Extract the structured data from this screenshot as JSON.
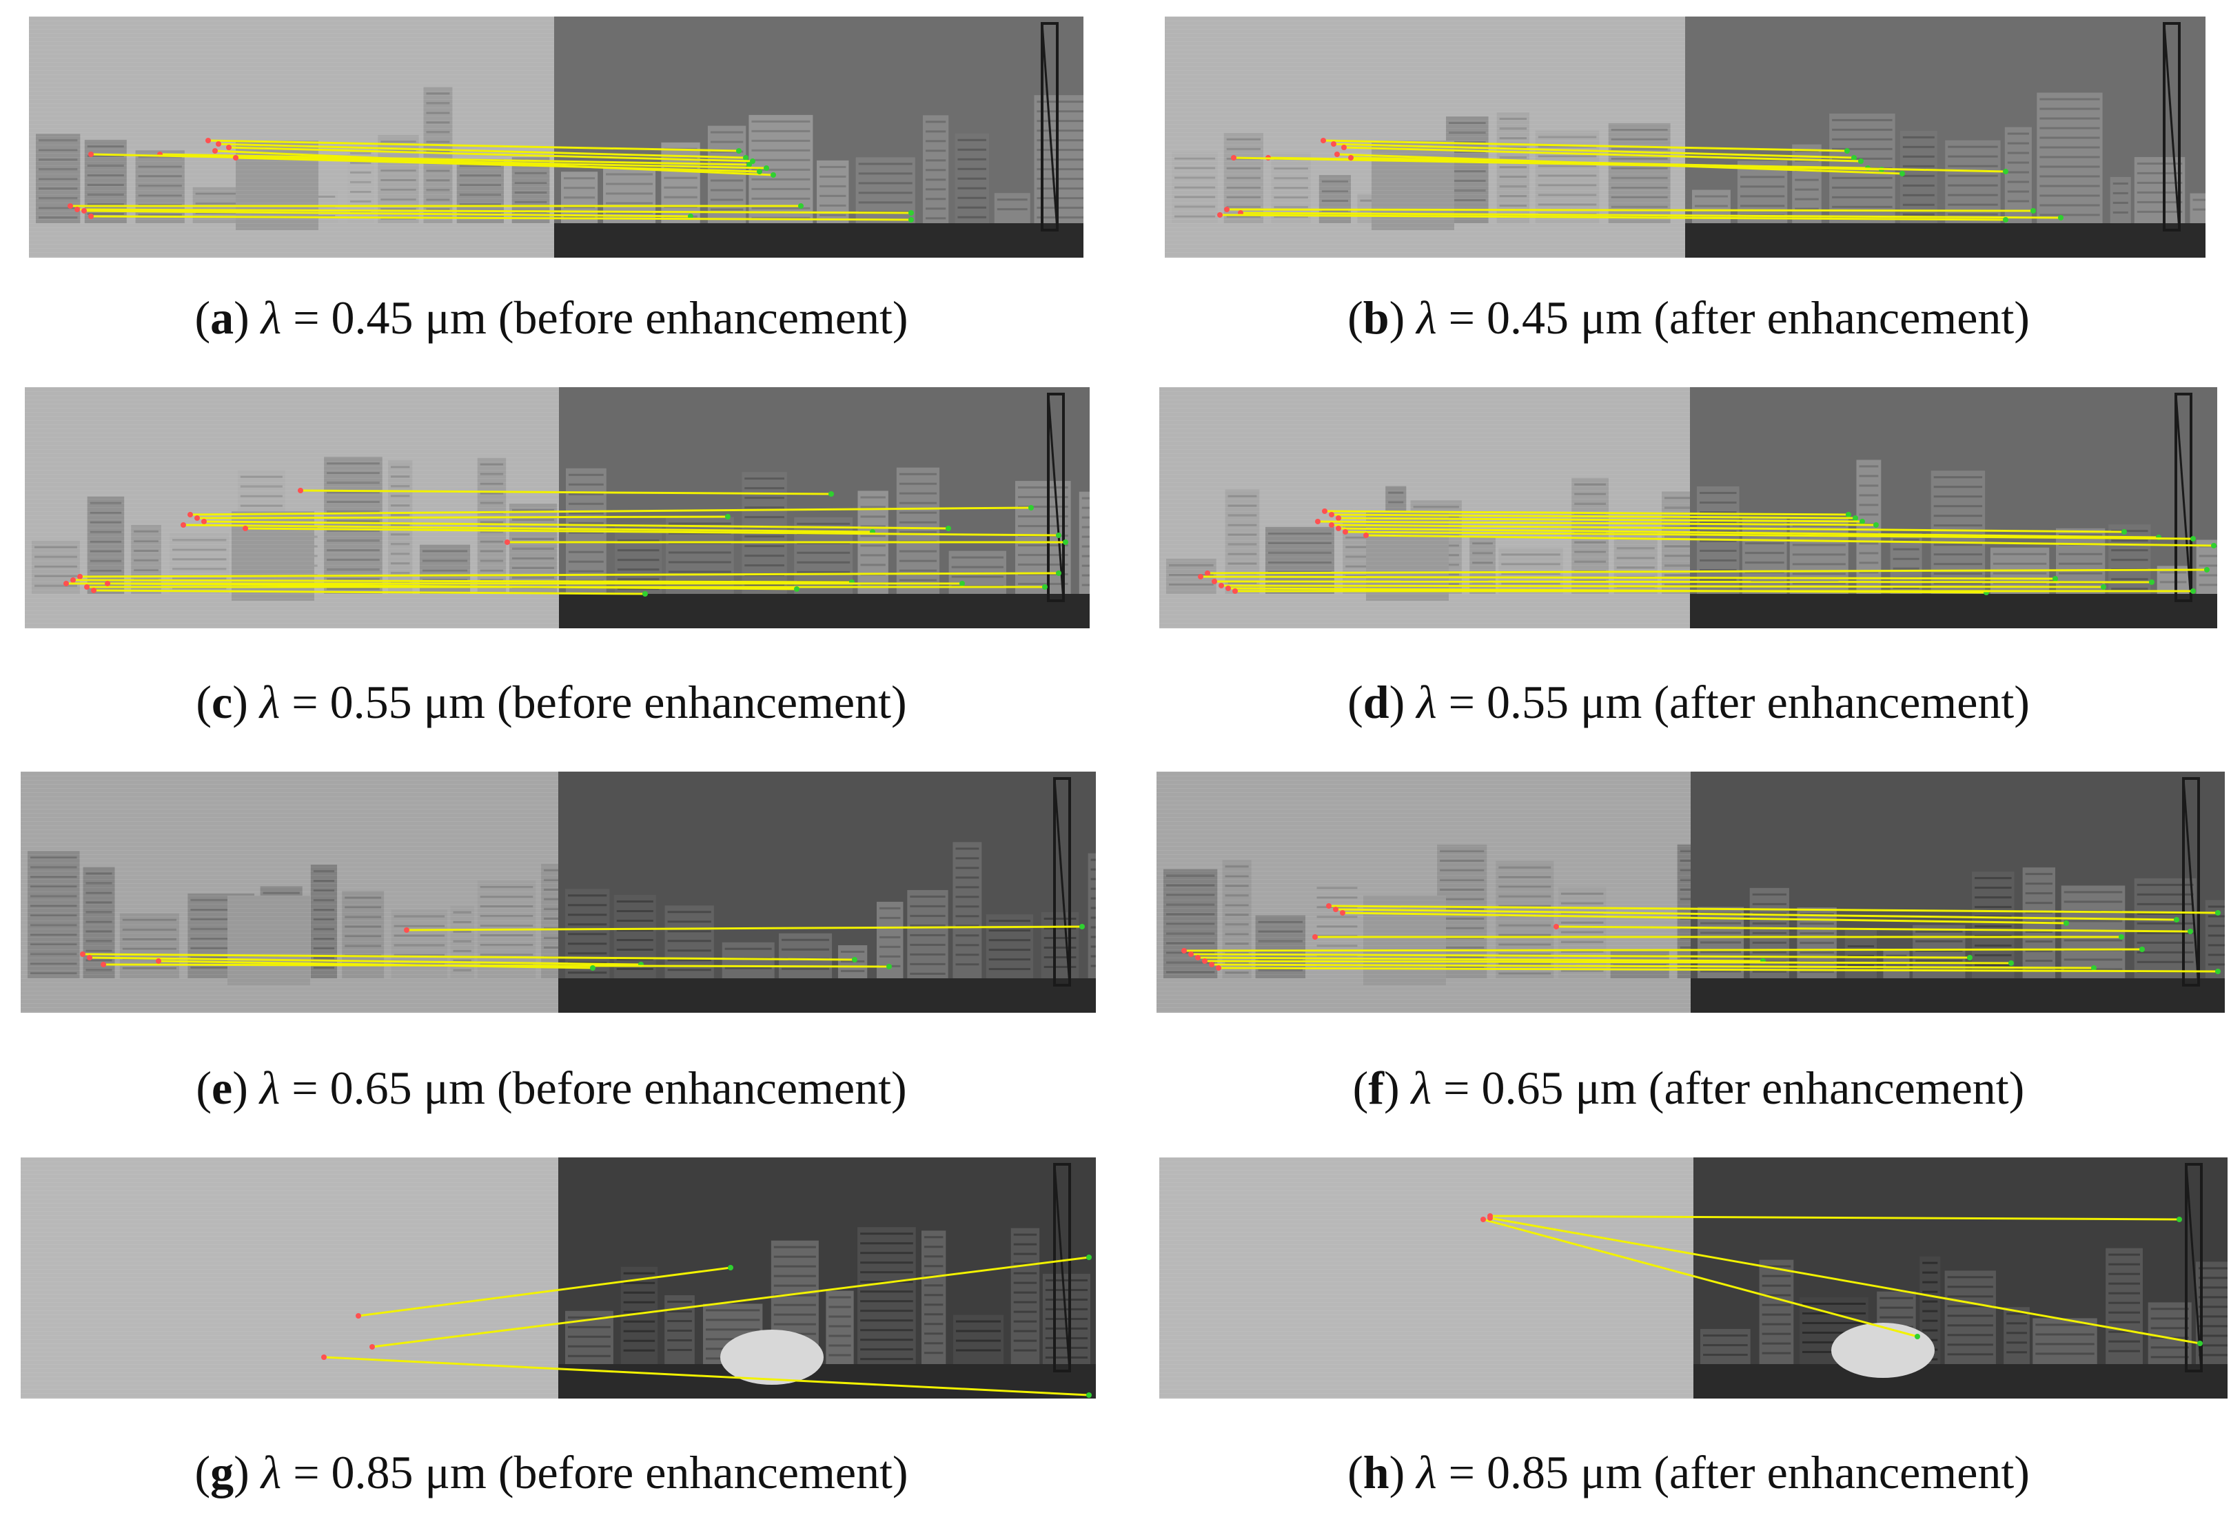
{
  "panels": [
    {
      "letter": "a",
      "lambda_symbol": "λ",
      "value": "= 0.45 μm",
      "note": "(before enhancement)"
    },
    {
      "letter": "b",
      "lambda_symbol": "λ",
      "value": "= 0.45 μm",
      "note": "(after enhancement)"
    },
    {
      "letter": "c",
      "lambda_symbol": "λ",
      "value": "= 0.55 μm",
      "note": "(before enhancement)"
    },
    {
      "letter": "d",
      "lambda_symbol": "λ",
      "value": "= 0.55 μm",
      "note": "(after enhancement)"
    },
    {
      "letter": "e",
      "lambda_symbol": "λ",
      "value": "= 0.65 μm",
      "note": "(before enhancement)"
    },
    {
      "letter": "f",
      "lambda_symbol": "λ",
      "value": "= 0.65 μm",
      "note": "(after enhancement)"
    },
    {
      "letter": "g",
      "lambda_symbol": "λ",
      "value": "= 0.85 μm",
      "note": "(before enhancement)"
    },
    {
      "letter": "h",
      "lambda_symbol": "λ",
      "value": "= 0.85 μm",
      "note": "(after enhancement)"
    }
  ],
  "colors": {
    "match_line": "#f2f200",
    "left_keypoint": "#ff5050",
    "right_keypoint": "#30d030"
  }
}
